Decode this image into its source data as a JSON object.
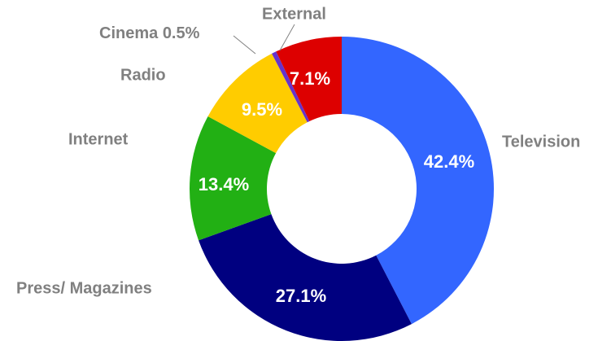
{
  "chart_data": {
    "type": "donut",
    "categories": [
      "Television",
      "Press/ Magazines",
      "Internet",
      "Radio",
      "Cinema",
      "External"
    ],
    "values": [
      42.4,
      27.1,
      13.4,
      9.5,
      0.5,
      7.1
    ],
    "value_labels": [
      "42.4%",
      "27.1%",
      "13.4%",
      "9.5%",
      "0.5%",
      "7.1%"
    ],
    "colors": [
      "#3366ff",
      "#000080",
      "#22b014",
      "#ffcc00",
      "#6633cc",
      "#dd0000"
    ]
  }
}
